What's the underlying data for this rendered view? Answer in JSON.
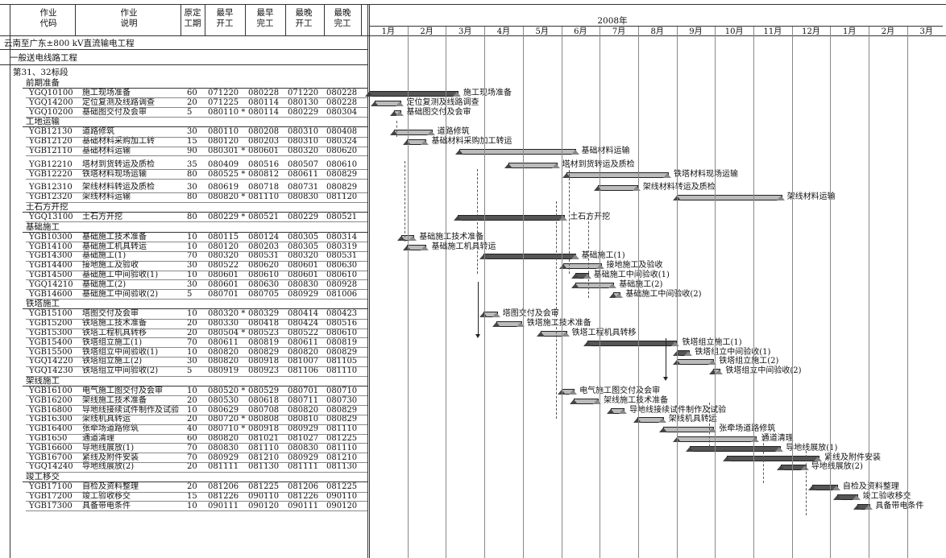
{
  "headers": {
    "code": "作业\n代码",
    "desc": "作业\n说明",
    "dur": "原定\n工期",
    "es": "最早\n开工",
    "ef": "最早\n完工",
    "ls": "最晚\n开工",
    "lf": "最晚\n完工",
    "year": "2008年"
  },
  "months": [
    "1月",
    "2月",
    "3月",
    "4月",
    "5月",
    "6月",
    "7月",
    "8月",
    "9月",
    "10月",
    "11月",
    "12月",
    "1月",
    "2月",
    "3月"
  ],
  "project": "云南至广东±800 kV直流输电工程",
  "section": "一般送电线路工程",
  "lot": "第31、32标段",
  "rows": [
    {
      "type": "group",
      "title": "前期准备"
    },
    {
      "type": "task",
      "code": "YGQ10100",
      "desc": "施工现场准备",
      "dur": "60",
      "es": "071220",
      "ef": "080228",
      "ls": "071220",
      "lf": "080228",
      "start": -0.35,
      "end": 1.93,
      "crit": true,
      "label": "施工现场准备"
    },
    {
      "type": "task",
      "code": "YGQ14200",
      "desc": "定位复测及线路调查",
      "dur": "20",
      "es": "071225",
      "ef": "080114",
      "ls": "080130",
      "lf": "080228",
      "start": -0.2,
      "end": 0.45,
      "crit": false,
      "label": "定位复测及线路调查"
    },
    {
      "type": "task",
      "code": "YGQ10200",
      "desc": "基础图交付及会审",
      "dur": "5",
      "es": "080110 *",
      "ef": "080114",
      "ls": "080229",
      "lf": "080304",
      "start": 0.3,
      "end": 0.45,
      "crit": false,
      "label": "基础图交付及会审"
    },
    {
      "type": "group",
      "title": "工地运输"
    },
    {
      "type": "task",
      "code": "YGB12130",
      "desc": "道路修筑",
      "dur": "30",
      "es": "080110",
      "ef": "080208",
      "ls": "080310",
      "lf": "080408",
      "start": 0.3,
      "end": 1.25,
      "crit": false,
      "label": "道路修筑"
    },
    {
      "type": "task",
      "code": "YGB12120",
      "desc": "基础材料采购加工转",
      "dur": "15",
      "es": "080120",
      "ef": "080203",
      "ls": "080310",
      "lf": "080324",
      "start": 0.62,
      "end": 1.1,
      "crit": false,
      "label": "基础材料采购加工转运"
    },
    {
      "type": "task",
      "code": "YGB12110",
      "desc": "基础材料运输",
      "dur": "90",
      "es": "080301 *",
      "ef": "080601",
      "ls": "080320",
      "lf": "080620",
      "start": 2.0,
      "end": 5.0,
      "crit": false,
      "label": "基础材料运输"
    },
    {
      "type": "gap"
    },
    {
      "type": "task",
      "code": "YGB12210",
      "desc": "塔材到货转运及质检",
      "dur": "35",
      "es": "080409",
      "ef": "080516",
      "ls": "080507",
      "lf": "080610",
      "start": 3.28,
      "end": 4.5,
      "crit": false,
      "label": "塔材到货转运及质检"
    },
    {
      "type": "task",
      "code": "YGB12220",
      "desc": "铁塔材料现场运输",
      "dur": "80",
      "es": "080525 *",
      "ef": "080812",
      "ls": "080611",
      "lf": "080829",
      "start": 4.78,
      "end": 7.4,
      "crit": false,
      "label": "铁塔材料现场运输"
    },
    {
      "type": "gap"
    },
    {
      "type": "task",
      "code": "YGB12310",
      "desc": "架线材料转运及质检",
      "dur": "30",
      "es": "080619",
      "ef": "080718",
      "ls": "080731",
      "lf": "080829",
      "start": 5.6,
      "end": 6.6,
      "crit": false,
      "label": "架线材料转运及质检"
    },
    {
      "type": "task",
      "code": "YGB12320",
      "desc": "架线材料运输",
      "dur": "80",
      "es": "080820 *",
      "ef": "081110",
      "ls": "080830",
      "lf": "081120",
      "start": 7.65,
      "end": 10.35,
      "crit": false,
      "label": "架线材料运输"
    },
    {
      "type": "group",
      "title": "土石方开挖"
    },
    {
      "type": "task",
      "code": "YGQ13100",
      "desc": "土石方开挖",
      "dur": "80",
      "es": "080229 *",
      "ef": "080521",
      "ls": "080229",
      "lf": "080521",
      "start": 1.95,
      "end": 4.7,
      "crit": true,
      "label": "土石方开挖"
    },
    {
      "type": "group",
      "title": "基础施工"
    },
    {
      "type": "task",
      "code": "YGB10300",
      "desc": "基础施工技术准备",
      "dur": "10",
      "es": "080115",
      "ef": "080124",
      "ls": "080305",
      "lf": "080314",
      "start": 0.48,
      "end": 0.78,
      "crit": false,
      "label": "基础施工技术准备"
    },
    {
      "type": "task",
      "code": "YGB14100",
      "desc": "基础施工机具转运",
      "dur": "10",
      "es": "080120",
      "ef": "080203",
      "ls": "080305",
      "lf": "080319",
      "start": 0.62,
      "end": 1.1,
      "crit": false,
      "label": "基础施工机具转运"
    },
    {
      "type": "task",
      "code": "YGB14300",
      "desc": "基础施工(1)",
      "dur": "70",
      "es": "080320",
      "ef": "080531",
      "ls": "080320",
      "lf": "080531",
      "start": 2.62,
      "end": 5.0,
      "crit": true,
      "label": "基础施工(1)"
    },
    {
      "type": "task",
      "code": "YGB14400",
      "desc": "接地施工及验收",
      "dur": "30",
      "es": "080522",
      "ef": "080620",
      "ls": "080601",
      "lf": "080630",
      "start": 4.7,
      "end": 5.65,
      "crit": false,
      "label": "接地施工及验收"
    },
    {
      "type": "task",
      "code": "YGB14500",
      "desc": "基础施工中间验收(1)",
      "dur": "10",
      "es": "080601",
      "ef": "080610",
      "ls": "080601",
      "lf": "080610",
      "start": 5.0,
      "end": 5.32,
      "crit": true,
      "label": "基础施工中间验收(1)"
    },
    {
      "type": "task",
      "code": "YGQ14210",
      "desc": "基础施工(2)",
      "dur": "30",
      "es": "080601",
      "ef": "080630",
      "ls": "080830",
      "lf": "080928",
      "start": 5.0,
      "end": 5.98,
      "crit": false,
      "label": "基础施工(2)"
    },
    {
      "type": "task",
      "code": "YGB14600",
      "desc": "基础施工中间验收(2)",
      "dur": "5",
      "es": "080701",
      "ef": "080705",
      "ls": "080929",
      "lf": "081006",
      "start": 6.0,
      "end": 6.15,
      "crit": false,
      "label": "基础施工中间验收(2)"
    },
    {
      "type": "group",
      "title": "铁塔施工"
    },
    {
      "type": "task",
      "code": "YGB15100",
      "desc": "塔图交付及会审",
      "dur": "10",
      "es": "080320 *",
      "ef": "080329",
      "ls": "080414",
      "lf": "080423",
      "start": 2.62,
      "end": 2.95,
      "crit": false,
      "label": "塔图交付及会审"
    },
    {
      "type": "task",
      "code": "YGB15200",
      "desc": "铁塔施工技术准备",
      "dur": "20",
      "es": "080330",
      "ef": "080418",
      "ls": "080424",
      "lf": "080516",
      "start": 2.95,
      "end": 3.58,
      "crit": false,
      "label": "铁塔施工技术准备"
    },
    {
      "type": "task",
      "code": "YGB15300",
      "desc": "铁塔工程机具转移",
      "dur": "20",
      "es": "080504 *",
      "ef": "080523",
      "ls": "080522",
      "lf": "080610",
      "start": 4.1,
      "end": 4.75,
      "crit": false,
      "label": "铁塔工程机具转移"
    },
    {
      "type": "task",
      "code": "YGB15400",
      "desc": "铁塔组立施工(1)",
      "dur": "70",
      "es": "080611",
      "ef": "080819",
      "ls": "080611",
      "lf": "080819",
      "start": 5.33,
      "end": 7.62,
      "crit": true,
      "label": "铁塔组立施工(1)"
    },
    {
      "type": "task",
      "code": "YGB15500",
      "desc": "铁塔组立中间验收(1)",
      "dur": "10",
      "es": "080820",
      "ef": "080829",
      "ls": "080820",
      "lf": "080829",
      "start": 7.65,
      "end": 7.95,
      "crit": true,
      "label": "铁塔组立中间验收(1)"
    },
    {
      "type": "task",
      "code": "YGQ14220",
      "desc": "铁塔组立施工(2)",
      "dur": "30",
      "es": "080820",
      "ef": "080918",
      "ls": "081007",
      "lf": "081105",
      "start": 7.65,
      "end": 8.58,
      "crit": false,
      "label": "铁塔组立施工(2)"
    },
    {
      "type": "task",
      "code": "YGQ14230",
      "desc": "铁塔组立中间验收(2)",
      "dur": "5",
      "es": "080919",
      "ef": "080923",
      "ls": "081106",
      "lf": "081110",
      "start": 8.6,
      "end": 8.75,
      "crit": false,
      "label": "铁塔组立中间验收(2)"
    },
    {
      "type": "group",
      "title": "架线施工"
    },
    {
      "type": "task",
      "code": "YGB16100",
      "desc": "电气施工图交付及会审",
      "dur": "10",
      "es": "080520 *",
      "ef": "080529",
      "ls": "080701",
      "lf": "080710",
      "start": 4.65,
      "end": 4.95,
      "crit": false,
      "label": "电气施工图交付及会审"
    },
    {
      "type": "task",
      "code": "YGB16200",
      "desc": "架线施工技术准备",
      "dur": "20",
      "es": "080530",
      "ef": "080618",
      "ls": "080711",
      "lf": "080730",
      "start": 4.97,
      "end": 5.58,
      "crit": false,
      "label": "架线施工技术准备"
    },
    {
      "type": "task",
      "code": "YGB16800",
      "desc": "导地线接续试件制作及试验",
      "dur": "10",
      "es": "080629",
      "ef": "080708",
      "ls": "080820",
      "lf": "080829",
      "start": 5.93,
      "end": 6.25,
      "crit": false,
      "label": "导地线接续试件制作及试验"
    },
    {
      "type": "task",
      "code": "YGB16300",
      "desc": "架线机具转运",
      "dur": "20",
      "es": "080720 *",
      "ef": "080808",
      "ls": "080810",
      "lf": "080829",
      "start": 6.63,
      "end": 7.27,
      "crit": false,
      "label": "架线机具转运"
    },
    {
      "type": "task",
      "code": "YGB16400",
      "desc": "张牵场道路修筑",
      "dur": "40",
      "es": "080710 *",
      "ef": "080918",
      "ls": "080929",
      "lf": "081110",
      "start": 7.3,
      "end": 8.58,
      "crit": false,
      "label": "张牵场道路修筑"
    },
    {
      "type": "task",
      "code": "YGB1650",
      "desc": "通道清理",
      "dur": "60",
      "es": "080820",
      "ef": "081021",
      "ls": "081027",
      "lf": "081225",
      "start": 7.65,
      "end": 9.68,
      "crit": false,
      "label": "通道清理"
    },
    {
      "type": "task",
      "code": "YGB16600",
      "desc": "导地线展放(1)",
      "dur": "70",
      "es": "080830",
      "ef": "081110",
      "ls": "080830",
      "lf": "081110",
      "start": 7.98,
      "end": 10.32,
      "crit": true,
      "label": "导地线展放(1)"
    },
    {
      "type": "task",
      "code": "YGB16700",
      "desc": "紧线及附件安装",
      "dur": "70",
      "es": "080929",
      "ef": "081210",
      "ls": "080929",
      "lf": "081210",
      "start": 8.95,
      "end": 11.32,
      "crit": true,
      "label": "紧线及附件安装"
    },
    {
      "type": "task",
      "code": "YGQ14240",
      "desc": "导地线展放(2)",
      "dur": "20",
      "es": "081111",
      "ef": "081130",
      "ls": "081111",
      "lf": "081130",
      "start": 10.35,
      "end": 10.98,
      "crit": true,
      "label": "导地线展放(2)"
    },
    {
      "type": "group",
      "title": "竣工移交"
    },
    {
      "type": "task",
      "code": "YGB17100",
      "desc": "自检及资料整理",
      "dur": "20",
      "es": "081206",
      "ef": "081225",
      "ls": "081206",
      "lf": "081225",
      "start": 11.17,
      "end": 11.8,
      "crit": true,
      "label": "自检及资料整理"
    },
    {
      "type": "task",
      "code": "YGB17200",
      "desc": "竣工验收移交",
      "dur": "15",
      "es": "081226",
      "ef": "090110",
      "ls": "081226",
      "lf": "090110",
      "start": 11.83,
      "end": 12.32,
      "crit": true,
      "label": "竣工验收移交"
    },
    {
      "type": "task",
      "code": "YGB17300",
      "desc": "具备带电条件",
      "dur": "10",
      "es": "090111",
      "ef": "090120",
      "ls": "090111",
      "lf": "090120",
      "start": 12.35,
      "end": 12.65,
      "crit": true,
      "label": "具备带电条件"
    }
  ]
}
